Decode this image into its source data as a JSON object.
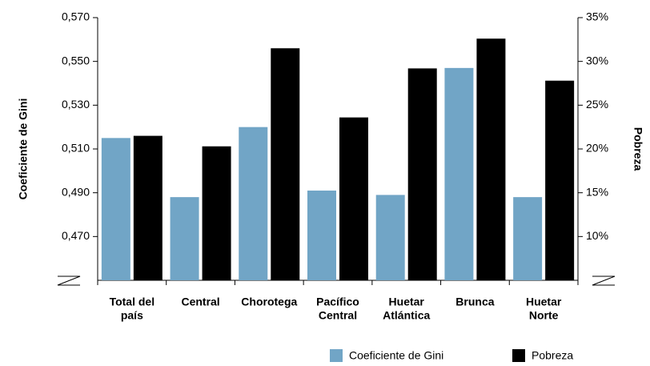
{
  "chart_data": {
    "type": "bar",
    "categories": [
      [
        "Total del",
        "país"
      ],
      [
        "Central"
      ],
      [
        "Chorotega"
      ],
      [
        "Pacífico",
        "Central"
      ],
      [
        "Huetar",
        "Atlántica"
      ],
      [
        "Brunca"
      ],
      [
        "Huetar",
        "Norte"
      ]
    ],
    "series": [
      {
        "name": "Coeficiente de Gini",
        "color": "#71a5c6",
        "values": [
          0.515,
          0.488,
          0.52,
          0.491,
          0.489,
          0.547,
          0.488
        ]
      },
      {
        "name": "Pobreza",
        "color": "#000000",
        "axis": "y2",
        "values": [
          21.5,
          20.3,
          31.5,
          23.6,
          29.2,
          32.6,
          27.8
        ]
      }
    ],
    "ylabel": "Coeficiente de Gini",
    "y2label": "Pobreza",
    "ylim": [
      0.45,
      0.57
    ],
    "yticks": [
      {
        "value": 0.47,
        "label": "0,470"
      },
      {
        "value": 0.49,
        "label": "0,490"
      },
      {
        "value": 0.51,
        "label": "0,510"
      },
      {
        "value": 0.53,
        "label": "0,530"
      },
      {
        "value": 0.55,
        "label": "0,550"
      },
      {
        "value": 0.57,
        "label": "0,570"
      }
    ],
    "y2lim": [
      5,
      35
    ],
    "y2ticks": [
      {
        "value": 10,
        "label": "10%"
      },
      {
        "value": 15,
        "label": "15%"
      },
      {
        "value": 20,
        "label": "20%"
      },
      {
        "value": 25,
        "label": "25%"
      },
      {
        "value": 30,
        "label": "30%"
      },
      {
        "value": 35,
        "label": "35%"
      }
    ],
    "legend": "bottom"
  }
}
